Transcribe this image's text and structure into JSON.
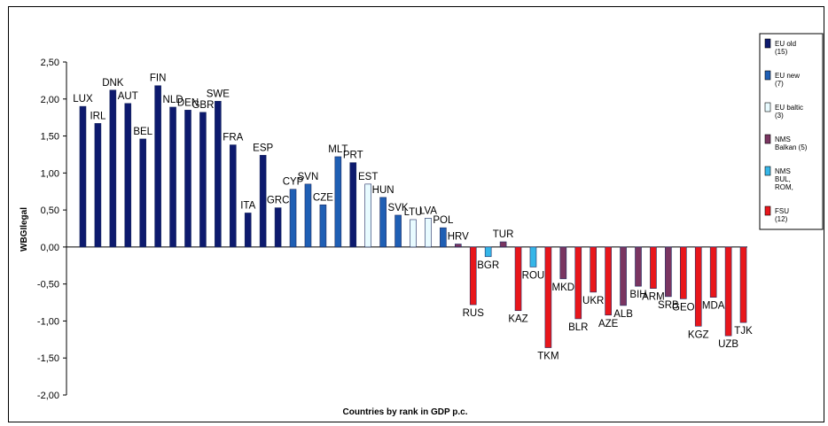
{
  "chart_data": {
    "type": "bar",
    "title": "",
    "xlabel": "Countries by rank in GDP p.c.",
    "ylabel": "WBGIlegal",
    "ylim": [
      -2.0,
      2.5
    ],
    "yticks": [
      "2,50",
      "2,00",
      "1,50",
      "1,00",
      "0,50",
      "0,00",
      "-0,50",
      "-1,00",
      "-1,50",
      "-2,00"
    ],
    "ytick_values": [
      2.5,
      2.0,
      1.5,
      1.0,
      0.5,
      0.0,
      -0.5,
      -1.0,
      -1.5,
      -2.0
    ],
    "grid": false,
    "legend_position": "right",
    "groups": [
      {
        "key": "old",
        "label_lines": [
          "EU old",
          "(15)"
        ],
        "color": "#0d1a6e"
      },
      {
        "key": "new",
        "label_lines": [
          "EU new",
          "(7)"
        ],
        "color": "#1f5fb4"
      },
      {
        "key": "baltic",
        "label_lines": [
          "EU baltic",
          "(3)"
        ],
        "color": "#e8fbff"
      },
      {
        "key": "balkan",
        "label_lines": [
          "NMS",
          "Balkan (5)"
        ],
        "color": "#7a3561"
      },
      {
        "key": "bulrom",
        "label_lines": [
          "NMS",
          "BUL,",
          "ROM,"
        ],
        "color": "#35b6e8"
      },
      {
        "key": "fsu",
        "label_lines": [
          "FSU",
          "(12)"
        ],
        "color": "#e8161b"
      }
    ],
    "categories": [
      "LUX",
      "IRL",
      "DNK",
      "AUT",
      "BEL",
      "FIN",
      "NLD",
      "DEN",
      "GBR",
      "SWE",
      "FRA",
      "ITA",
      "ESP",
      "GRC",
      "CYP",
      "SVN",
      "CZE",
      "MLT",
      "PRT",
      "EST",
      "HUN",
      "SVK",
      "LTU",
      "LVA",
      "POL",
      "HRV",
      "RUS",
      "BGR",
      "TUR",
      "KAZ",
      "ROU",
      "TKM",
      "MKD",
      "BLR",
      "UKR",
      "AZE",
      "ALB",
      "BIH",
      "ARM",
      "SRB",
      "GEO",
      "KGZ",
      "MDA",
      "UZB",
      "TJK"
    ],
    "values": [
      1.9,
      1.67,
      2.12,
      1.94,
      1.46,
      2.18,
      1.89,
      1.85,
      1.82,
      1.97,
      1.38,
      0.46,
      1.24,
      0.53,
      0.78,
      0.85,
      0.57,
      1.22,
      1.14,
      0.85,
      0.67,
      0.43,
      0.37,
      0.39,
      0.26,
      0.04,
      -0.78,
      -0.13,
      0.07,
      -0.86,
      -0.27,
      -1.36,
      -0.43,
      -0.97,
      -0.61,
      -0.92,
      -0.79,
      -0.53,
      -0.56,
      -0.67,
      -0.7,
      -1.07,
      -0.68,
      -1.2,
      -1.02
    ],
    "bar_groups": [
      "old",
      "old",
      "old",
      "old",
      "old",
      "old",
      "old",
      "old",
      "old",
      "old",
      "old",
      "old",
      "old",
      "old",
      "new",
      "new",
      "new",
      "new",
      "old",
      "baltic",
      "new",
      "new",
      "baltic",
      "baltic",
      "new",
      "balkan",
      "fsu",
      "bulrom",
      "balkan",
      "fsu",
      "bulrom",
      "fsu",
      "balkan",
      "fsu",
      "fsu",
      "fsu",
      "balkan",
      "balkan",
      "fsu",
      "balkan",
      "fsu",
      "fsu",
      "fsu",
      "fsu",
      "fsu"
    ]
  }
}
